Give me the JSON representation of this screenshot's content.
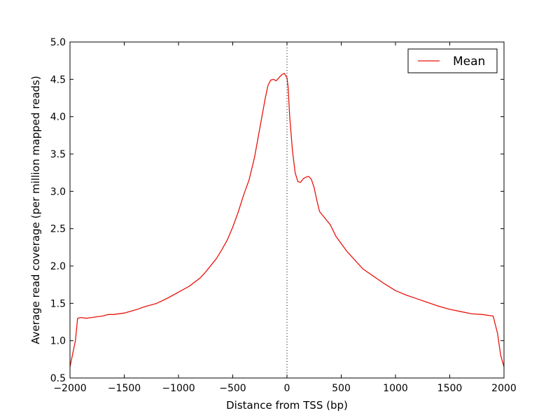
{
  "colors": {
    "series": "#e8140c",
    "axis": "#000000",
    "background": "#ffffff"
  },
  "chart_data": {
    "type": "line",
    "title": "",
    "xlabel": "Distance from TSS (bp)",
    "ylabel": "Average read coverage (per million mapped reads)",
    "xlim": [
      -2000,
      2000
    ],
    "ylim": [
      0.5,
      5.0
    ],
    "xticks": [
      -2000,
      -1500,
      -1000,
      -500,
      0,
      500,
      1000,
      1500,
      2000
    ],
    "xtick_labels": [
      "−2000",
      "−1500",
      "−1000",
      "−500",
      "0",
      "500",
      "1000",
      "1500",
      "2000"
    ],
    "yticks": [
      0.5,
      1.0,
      1.5,
      2.0,
      2.5,
      3.0,
      3.5,
      4.0,
      4.5,
      5.0
    ],
    "ytick_labels": [
      "0.5",
      "1.0",
      "1.5",
      "2.0",
      "2.5",
      "3.0",
      "3.5",
      "4.0",
      "4.5",
      "5.0"
    ],
    "reference_line": {
      "x": 0,
      "style": "dotted"
    },
    "grid": false,
    "legend": {
      "position": "top-right",
      "entries": [
        "Mean"
      ]
    },
    "series": [
      {
        "name": "Mean",
        "x": [
          -2000,
          -1950,
          -1930,
          -1900,
          -1850,
          -1800,
          -1750,
          -1700,
          -1650,
          -1600,
          -1500,
          -1400,
          -1300,
          -1200,
          -1100,
          -1000,
          -900,
          -800,
          -750,
          -700,
          -650,
          -600,
          -550,
          -500,
          -450,
          -400,
          -350,
          -300,
          -250,
          -200,
          -175,
          -150,
          -125,
          -100,
          -75,
          -50,
          -25,
          0,
          10,
          25,
          50,
          75,
          100,
          125,
          150,
          175,
          200,
          225,
          250,
          275,
          300,
          350,
          400,
          450,
          500,
          550,
          600,
          700,
          800,
          900,
          1000,
          1100,
          1200,
          1300,
          1400,
          1500,
          1600,
          1700,
          1800,
          1900,
          1940,
          1970,
          2000
        ],
        "y": [
          0.65,
          1.0,
          1.3,
          1.31,
          1.3,
          1.31,
          1.32,
          1.33,
          1.35,
          1.35,
          1.37,
          1.41,
          1.46,
          1.5,
          1.57,
          1.65,
          1.73,
          1.84,
          1.92,
          2.01,
          2.1,
          2.22,
          2.35,
          2.52,
          2.72,
          2.95,
          3.15,
          3.45,
          3.85,
          4.25,
          4.42,
          4.49,
          4.5,
          4.48,
          4.52,
          4.56,
          4.58,
          4.52,
          4.4,
          4.0,
          3.55,
          3.25,
          3.13,
          3.12,
          3.17,
          3.19,
          3.2,
          3.16,
          3.05,
          2.88,
          2.73,
          2.64,
          2.55,
          2.4,
          2.3,
          2.2,
          2.12,
          1.96,
          1.86,
          1.76,
          1.67,
          1.61,
          1.56,
          1.51,
          1.46,
          1.42,
          1.39,
          1.36,
          1.35,
          1.33,
          1.1,
          0.8,
          0.65
        ]
      }
    ]
  }
}
